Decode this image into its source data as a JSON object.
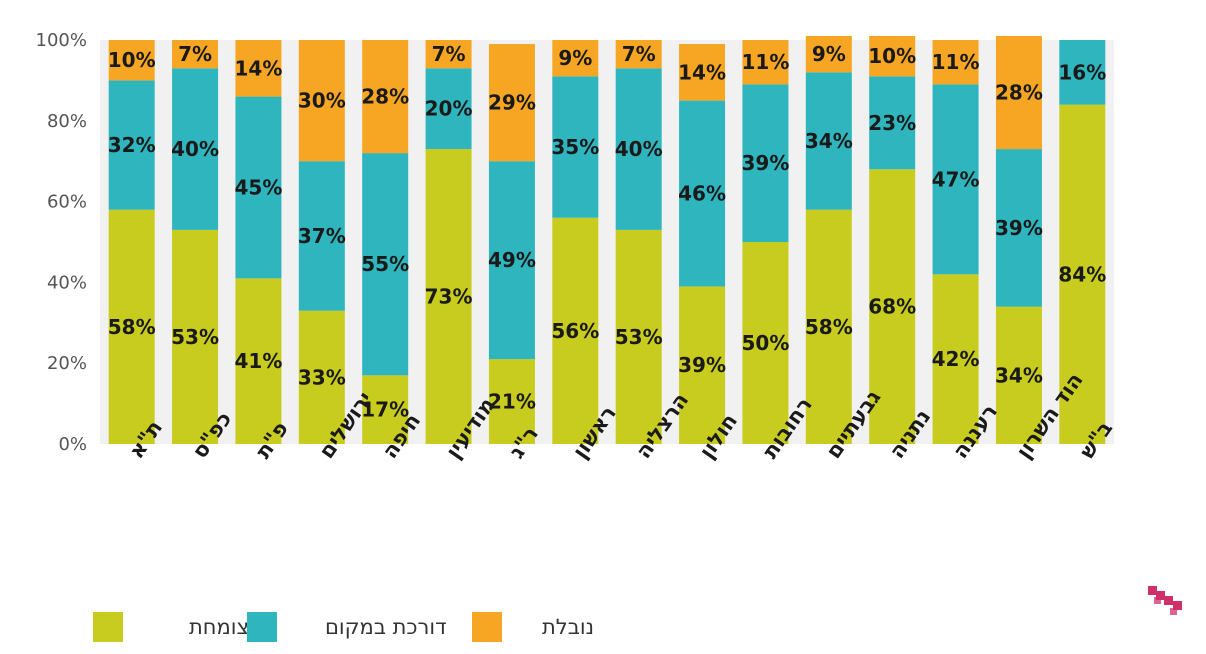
{
  "chart_data": {
    "type": "bar",
    "stacked": true,
    "normalized": true,
    "title": "",
    "xlabel": "",
    "ylabel": "",
    "ylim": [
      0,
      100
    ],
    "yticks": [
      "0%",
      "20%",
      "40%",
      "60%",
      "80%",
      "100%"
    ],
    "categories": [
      "ת\"א",
      "כפ\"ס",
      "פ\"ת",
      "ירושלים",
      "חיפה",
      "מודיעין",
      "ר\"ג",
      "ראשון",
      "הרצליה",
      "חולון",
      "רחובות",
      "גבעתיים",
      "נתניה",
      "רעננה",
      "הוד השרון",
      "ב\"ש"
    ],
    "series": [
      {
        "name": "צומחת",
        "color": "#c8cc1e",
        "values": [
          58,
          53,
          41,
          33,
          17,
          73,
          21,
          56,
          53,
          39,
          50,
          58,
          68,
          42,
          34,
          84
        ]
      },
      {
        "name": "דורכת במקום",
        "color": "#2fb5be",
        "values": [
          32,
          40,
          45,
          37,
          55,
          20,
          49,
          35,
          40,
          46,
          39,
          34,
          23,
          47,
          39,
          16
        ]
      },
      {
        "name": "נובלת",
        "color": "#f7a623",
        "values": [
          10,
          7,
          14,
          30,
          28,
          7,
          29,
          9,
          7,
          14,
          11,
          9,
          10,
          11,
          28,
          0
        ]
      }
    ],
    "grid": false,
    "legend_position": "bottom"
  },
  "legend": {
    "items": [
      {
        "label": "צומחת",
        "color": "#c8cc1e"
      },
      {
        "label": "דורכת במקום",
        "color": "#2fb5be"
      },
      {
        "label": "נובלת",
        "color": "#f7a623"
      }
    ]
  },
  "logo": {
    "icon": "brand-logo-icon",
    "color": "#d0306a"
  }
}
